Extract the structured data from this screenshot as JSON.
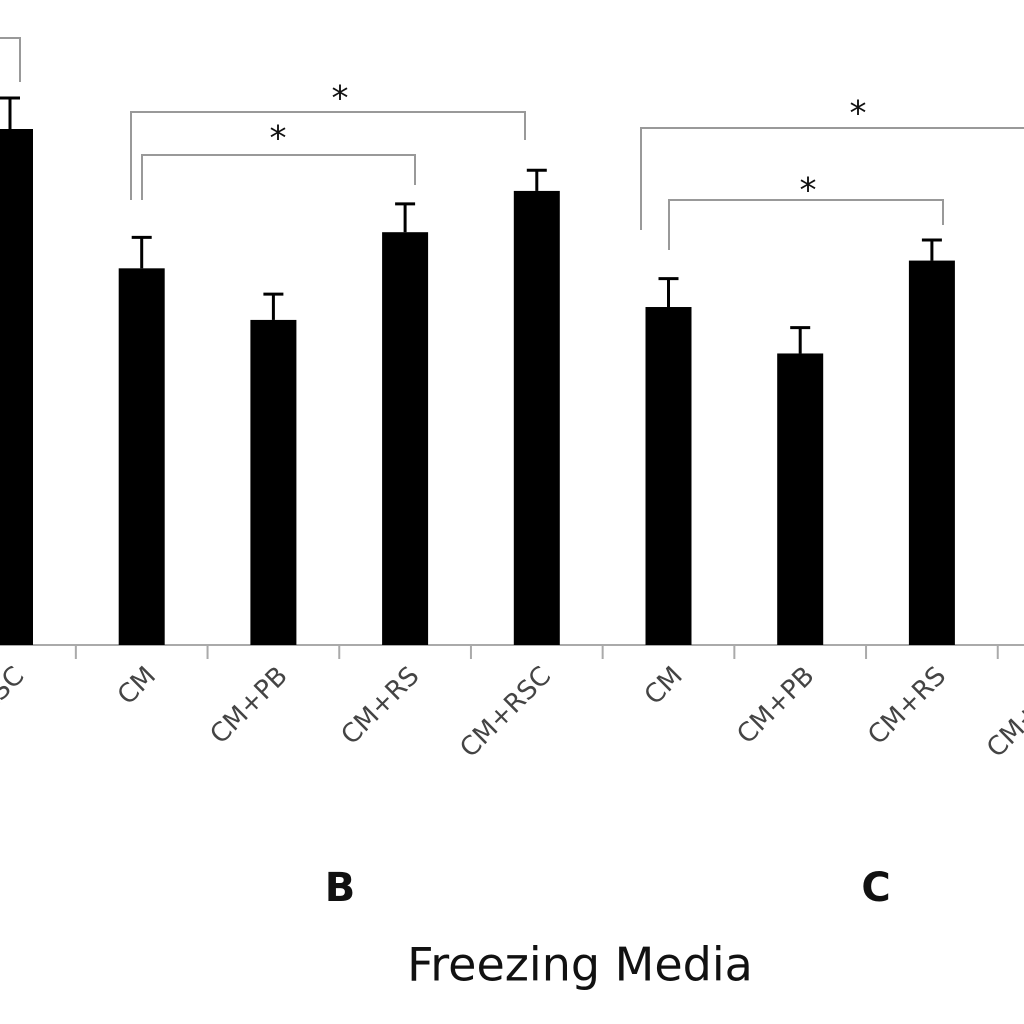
{
  "chart_data": {
    "type": "bar",
    "xlabel": "Freezing Media",
    "groups": [
      "B",
      "C"
    ],
    "categories": [
      "CM+RSC",
      "CM",
      "CM+PB",
      "CM+RS",
      "CM+RSC",
      "CM",
      "CM+PB",
      "CM+RS",
      "CM+RSC"
    ],
    "values": [
      100,
      73,
      63,
      80,
      88,
      65.5,
      56.5,
      74.5,
      null
    ],
    "errors": [
      6,
      6,
      5,
      5.5,
      4,
      5.5,
      5,
      4,
      null
    ],
    "color": "#000000",
    "ylim": [
      0,
      125
    ],
    "annotations": [
      "*",
      "*",
      "*",
      "*"
    ]
  }
}
